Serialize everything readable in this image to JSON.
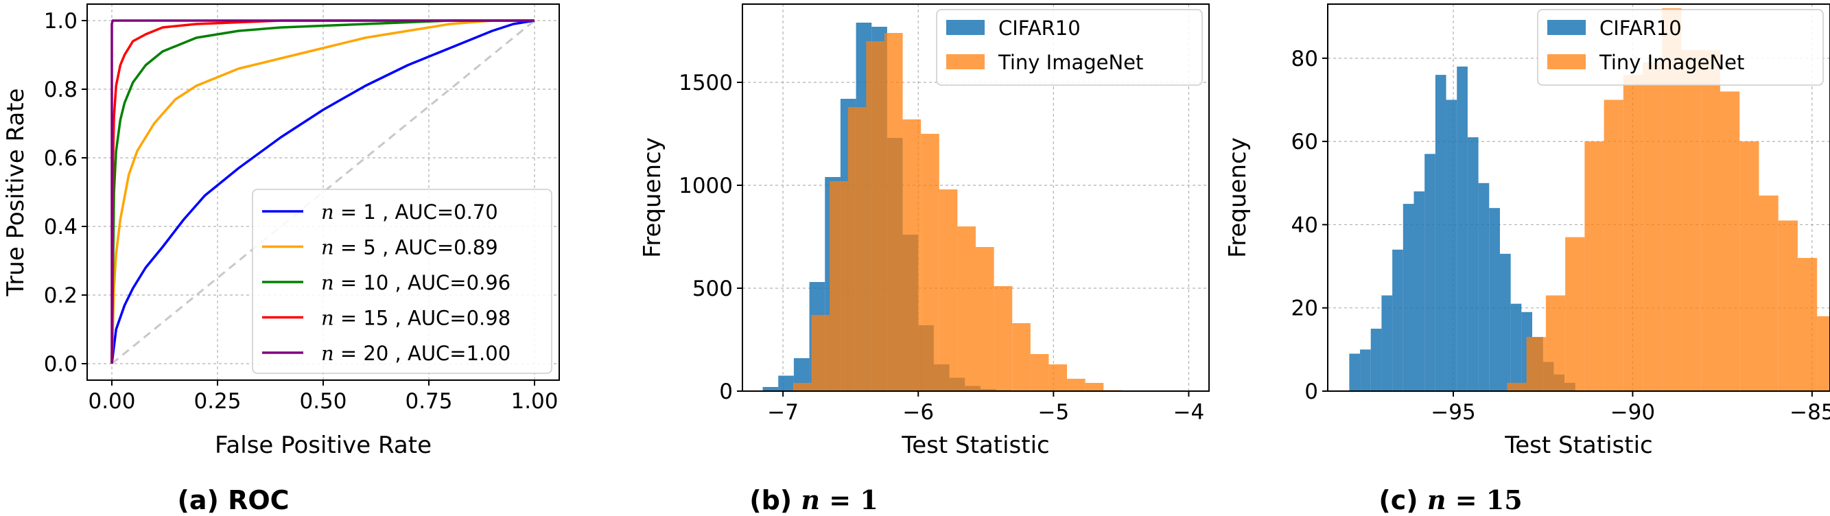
{
  "colors": {
    "cifar": "#1f77b4",
    "tiny": "#ff7f0e",
    "n1": "#0000ff",
    "n5": "#ffa500",
    "n10": "#008000",
    "n15": "#ff0000",
    "n20": "#800080",
    "chance": "#c8c8c8",
    "grid": "#b0b0b0"
  },
  "captions": {
    "roc_prefix": "(a)",
    "roc_text": "ROC",
    "b_prefix": "(b)",
    "b_var": "n",
    "b_rest": " = 1",
    "c_prefix": "(c)",
    "c_var": "n",
    "c_rest": " = 15"
  },
  "chart_data": [
    {
      "type": "line",
      "xlabel": "False Positive Rate",
      "ylabel": "True Positive Rate",
      "xlim": [
        0,
        1
      ],
      "ylim": [
        0,
        1
      ],
      "xticks": [
        "0.00",
        "0.25",
        "0.50",
        "0.75",
        "1.00"
      ],
      "yticks": [
        "0.0",
        "0.2",
        "0.4",
        "0.6",
        "0.8",
        "1.0"
      ],
      "grid": true,
      "legend_position": "lower-right",
      "chance_line": {
        "style": "dashed",
        "x": [
          0,
          1
        ],
        "y": [
          0,
          1
        ]
      },
      "series": [
        {
          "name": "n = 1 , AUC=0.70",
          "var": "n",
          "label_rest": " = 1 , AUC=0.70",
          "color_key": "n1",
          "x": [
            0,
            0.01,
            0.03,
            0.05,
            0.08,
            0.12,
            0.17,
            0.22,
            0.3,
            0.4,
            0.5,
            0.6,
            0.7,
            0.8,
            0.9,
            0.95,
            1.0
          ],
          "y": [
            0,
            0.1,
            0.17,
            0.22,
            0.28,
            0.34,
            0.42,
            0.49,
            0.57,
            0.66,
            0.74,
            0.81,
            0.87,
            0.92,
            0.97,
            0.99,
            1.0
          ]
        },
        {
          "name": "n = 5 , AUC=0.89",
          "var": "n",
          "label_rest": " = 5 , AUC=0.89",
          "color_key": "n5",
          "x": [
            0,
            0.005,
            0.01,
            0.02,
            0.04,
            0.06,
            0.1,
            0.15,
            0.2,
            0.3,
            0.4,
            0.5,
            0.6,
            0.7,
            0.8,
            0.9,
            1.0
          ],
          "y": [
            0,
            0.22,
            0.32,
            0.42,
            0.55,
            0.62,
            0.7,
            0.77,
            0.81,
            0.86,
            0.89,
            0.92,
            0.95,
            0.97,
            0.99,
            1.0,
            1.0
          ]
        },
        {
          "name": "n = 10 , AUC=0.96",
          "var": "n",
          "label_rest": " = 10 , AUC=0.96",
          "color_key": "n10",
          "x": [
            0,
            0.005,
            0.01,
            0.02,
            0.03,
            0.05,
            0.08,
            0.12,
            0.16,
            0.2,
            0.3,
            0.4,
            0.5,
            0.6,
            0.7,
            0.8,
            1.0
          ],
          "y": [
            0,
            0.5,
            0.62,
            0.71,
            0.76,
            0.82,
            0.87,
            0.91,
            0.93,
            0.95,
            0.97,
            0.98,
            0.985,
            0.99,
            0.995,
            1.0,
            1.0
          ]
        },
        {
          "name": "n = 15 , AUC=0.98",
          "var": "n",
          "label_rest": " = 15 , AUC=0.98",
          "color_key": "n15",
          "x": [
            0,
            0.003,
            0.005,
            0.01,
            0.02,
            0.03,
            0.05,
            0.08,
            0.12,
            0.2,
            0.3,
            0.4,
            0.5,
            1.0
          ],
          "y": [
            0,
            0.6,
            0.72,
            0.81,
            0.87,
            0.9,
            0.94,
            0.96,
            0.98,
            0.99,
            0.995,
            1.0,
            1.0,
            1.0
          ]
        },
        {
          "name": "n = 20 , AUC=1.00",
          "var": "n",
          "label_rest": " = 20 , AUC=1.00",
          "color_key": "n20",
          "x": [
            0,
            0,
            0.002,
            1.0
          ],
          "y": [
            0,
            0.99,
            1.0,
            1.0
          ]
        }
      ]
    },
    {
      "type": "histogram",
      "xlabel": "Test Statistic",
      "ylabel": "Frequency",
      "xlim": [
        -7.3,
        -3.85
      ],
      "ylim": [
        0,
        1880
      ],
      "xticks": [
        -7,
        -6,
        -5,
        -4
      ],
      "xtick_labels": [
        "−7",
        "−6",
        "−5",
        "−4"
      ],
      "yticks": [
        0,
        500,
        1000,
        1500
      ],
      "ytick_labels": [
        "0",
        "500",
        "1000",
        "1500"
      ],
      "grid": true,
      "legend_position": "top-right",
      "series": [
        {
          "name": "CIFAR10",
          "color_key": "cifar",
          "alpha": 0.85,
          "bin_start": -7.15,
          "bin_width": 0.115,
          "counts": [
            20,
            75,
            160,
            530,
            1040,
            1420,
            1790,
            1770,
            1230,
            760,
            320,
            130,
            65,
            25,
            10,
            5,
            3,
            2,
            1,
            1,
            0,
            0,
            0,
            0,
            0,
            1
          ]
        },
        {
          "name": "Tiny ImageNet",
          "color_key": "tiny",
          "alpha": 0.75,
          "bin_start": -6.925,
          "bin_width": 0.135,
          "counts": [
            40,
            370,
            1020,
            1380,
            1700,
            1740,
            1320,
            1250,
            980,
            800,
            700,
            510,
            330,
            180,
            130,
            60,
            40,
            5
          ]
        }
      ]
    },
    {
      "type": "histogram",
      "xlabel": "Test Statistic",
      "ylabel": "Frequency",
      "xlim": [
        -98.5,
        -84.5
      ],
      "ylim": [
        0,
        93
      ],
      "xticks": [
        -95,
        -90,
        -85
      ],
      "xtick_labels": [
        "−95",
        "−90",
        "−85"
      ],
      "yticks": [
        0,
        20,
        40,
        60,
        80
      ],
      "ytick_labels": [
        "0",
        "20",
        "40",
        "60",
        "80"
      ],
      "grid": true,
      "legend_position": "top-right",
      "series": [
        {
          "name": "CIFAR10",
          "color_key": "cifar",
          "alpha": 0.85,
          "bin_start": -97.9,
          "bin_width": 0.3,
          "counts": [
            9,
            10,
            15,
            23,
            34,
            45,
            48,
            57,
            76,
            70,
            78,
            61,
            50,
            44,
            33,
            21,
            19,
            13,
            7,
            4,
            2
          ]
        },
        {
          "name": "Tiny ImageNet",
          "color_key": "tiny",
          "alpha": 0.75,
          "bin_start": -93.5,
          "bin_width": 0.54,
          "counts": [
            2,
            13,
            23,
            37,
            60,
            70,
            76,
            79,
            92,
            82,
            82,
            72,
            60,
            47,
            41,
            32,
            18,
            18,
            10,
            9,
            5
          ]
        }
      ]
    }
  ]
}
